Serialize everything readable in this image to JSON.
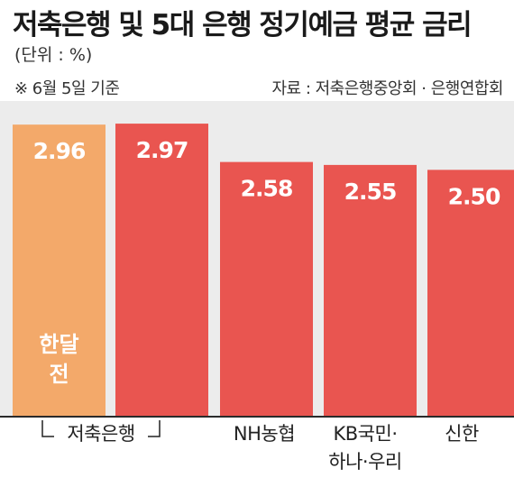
{
  "header": {
    "title": "저축은행 및 5대 은행 정기예금 평균 금리",
    "unit": "(단위 : %)",
    "basis": "※ 6월 5일 기준",
    "source": "자료 : 저축은행중앙회 · 은행연합회"
  },
  "colors": {
    "background": "#ececec",
    "month_ago": "#f3a96a",
    "current": "#e95550"
  },
  "chart_data": {
    "type": "bar",
    "title": "저축은행 및 5대 은행 정기예금 평균 금리",
    "ylabel": "",
    "xlabel": "",
    "ylim": [
      0,
      3.2
    ],
    "grid": false,
    "bars": [
      {
        "group": "저축은행",
        "value": 2.96,
        "label": "2.96",
        "note": "한달 전"
      },
      {
        "group": "저축은행",
        "value": 2.97,
        "label": "2.97"
      },
      {
        "group": "NH농협",
        "value": 2.58,
        "label": "2.58"
      },
      {
        "group": "KB국민·하나·우리",
        "value": 2.55,
        "label": "2.55"
      },
      {
        "group": "신한",
        "value": 2.5,
        "label": "2.50"
      }
    ],
    "categories": [
      "저축은행",
      "NH농협",
      "KB국민·하나·우리",
      "신한"
    ],
    "month_ago_note_lines": [
      "한달",
      "전"
    ],
    "category_labels": {
      "savings_bank": "저축은행",
      "nh": "NH농협",
      "kb_line1": "KB국민·",
      "kb_line2": "하나·우리",
      "shinhan": "신한"
    }
  }
}
